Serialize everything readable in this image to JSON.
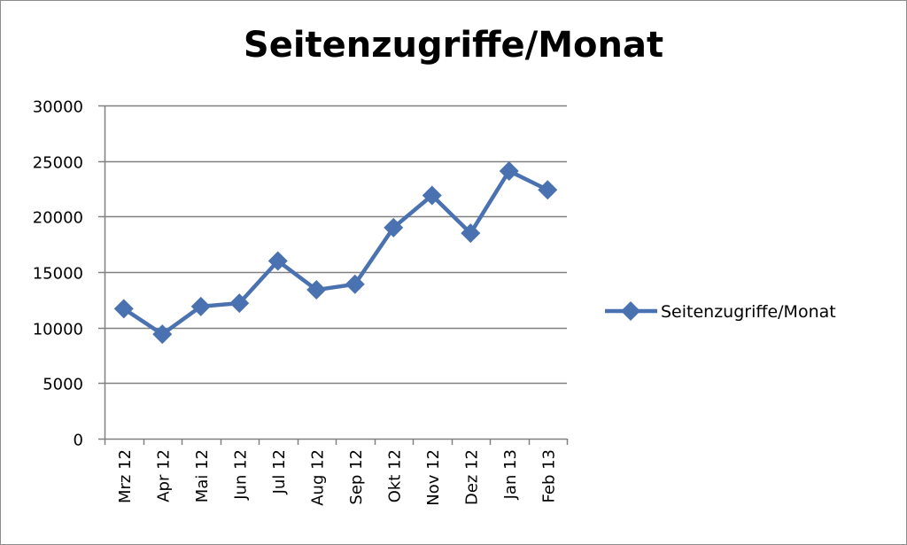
{
  "chart_data": {
    "type": "line",
    "title": "Seitenzugriffe/Monat",
    "xlabel": "",
    "ylabel": "",
    "categories": [
      "Mrz 12",
      "Apr 12",
      "Mai 12",
      "Jun 12",
      "Jul 12",
      "Aug 12",
      "Sep 12",
      "Okt 12",
      "Nov 12",
      "Dez 12",
      "Jan 13",
      "Feb 13"
    ],
    "series": [
      {
        "name": "Seitenzugriffe/Monat",
        "values": [
          11700,
          9400,
          11900,
          12200,
          16000,
          13400,
          13900,
          19000,
          21900,
          18500,
          24100,
          22400
        ]
      }
    ],
    "ylim": [
      0,
      30000
    ],
    "yticks": [
      "0",
      "5000",
      "10000",
      "15000",
      "20000",
      "25000",
      "30000"
    ],
    "grid": "horizontal",
    "legend": "right",
    "colors": {
      "series": "#4a72b0",
      "grid": "#808080",
      "axis": "#808080"
    }
  }
}
